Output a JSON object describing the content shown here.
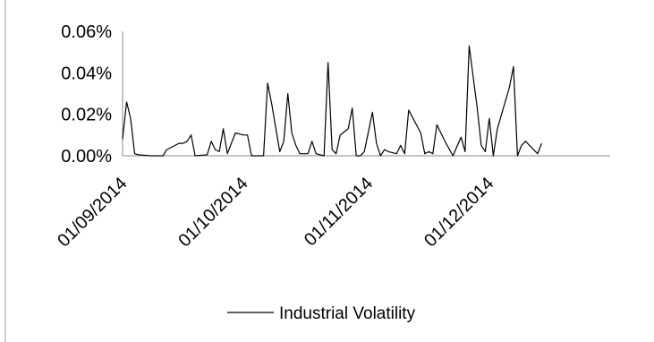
{
  "chart_data": {
    "type": "line",
    "title": "",
    "xlabel": "",
    "ylabel": "",
    "ylim": [
      0,
      0.0006
    ],
    "y_ticks": [
      "0.00%",
      "0.02%",
      "0.04%",
      "0.06%"
    ],
    "y_tick_values": [
      0,
      0.0002,
      0.0004,
      0.0006
    ],
    "x_ticks": [
      "01/09/2014",
      "01/10/2014",
      "01/11/2014",
      "01/12/2014"
    ],
    "x_tick_dates": [
      "2014-09-01",
      "2014-10-01",
      "2014-11-01",
      "2014-12-01"
    ],
    "xlim": [
      "2014-09-01",
      "2014-12-31"
    ],
    "grid": false,
    "legend_position": "bottom",
    "colors": {
      "series": "#000000",
      "axis": "#888888",
      "frame": "#a6a6a6"
    },
    "series": [
      {
        "name": "Industrial Volatility",
        "points": [
          [
            "2014-09-01",
            8e-05
          ],
          [
            "2014-09-02",
            0.00026
          ],
          [
            "2014-09-03",
            0.00018
          ],
          [
            "2014-09-04",
            1e-05
          ],
          [
            "2014-09-05",
            5e-06
          ],
          [
            "2014-09-08",
            0.0
          ],
          [
            "2014-09-11",
            0.0
          ],
          [
            "2014-09-12",
            3e-05
          ],
          [
            "2014-09-15",
            6e-05
          ],
          [
            "2014-09-16",
            6e-05
          ],
          [
            "2014-09-17",
            7e-05
          ],
          [
            "2014-09-18",
            0.0001
          ],
          [
            "2014-09-19",
            0.0
          ],
          [
            "2014-09-22",
            5e-06
          ],
          [
            "2014-09-23",
            7e-05
          ],
          [
            "2014-09-24",
            3e-05
          ],
          [
            "2014-09-25",
            2e-05
          ],
          [
            "2014-09-26",
            0.00013
          ],
          [
            "2014-09-27",
            1e-05
          ],
          [
            "2014-09-29",
            0.00011
          ],
          [
            "2014-10-01",
            0.0001
          ],
          [
            "2014-10-02",
            0.0001
          ],
          [
            "2014-10-03",
            0.0
          ],
          [
            "2014-10-06",
            0.0
          ],
          [
            "2014-10-07",
            0.00035
          ],
          [
            "2014-10-08",
            0.00025
          ],
          [
            "2014-10-10",
            2e-05
          ],
          [
            "2014-10-11",
            7e-05
          ],
          [
            "2014-10-12",
            0.0003
          ],
          [
            "2014-10-13",
            0.00011
          ],
          [
            "2014-10-14",
            5e-05
          ],
          [
            "2014-10-15",
            1e-05
          ],
          [
            "2014-10-17",
            1e-05
          ],
          [
            "2014-10-18",
            7e-05
          ],
          [
            "2014-10-19",
            1e-05
          ],
          [
            "2014-10-21",
            0.0
          ],
          [
            "2014-10-22",
            0.00045
          ],
          [
            "2014-10-23",
            3e-05
          ],
          [
            "2014-10-24",
            1e-05
          ],
          [
            "2014-10-25",
            0.0001
          ],
          [
            "2014-10-27",
            0.00013
          ],
          [
            "2014-10-28",
            0.00023
          ],
          [
            "2014-10-29",
            0.0
          ],
          [
            "2014-10-30",
            0.0
          ],
          [
            "2014-10-31",
            2e-05
          ],
          [
            "2014-11-02",
            0.00021
          ],
          [
            "2014-11-03",
            6e-05
          ],
          [
            "2014-11-04",
            0.0
          ],
          [
            "2014-11-05",
            3e-05
          ],
          [
            "2014-11-06",
            2e-05
          ],
          [
            "2014-11-08",
            1e-05
          ],
          [
            "2014-11-09",
            5e-05
          ],
          [
            "2014-11-10",
            1e-05
          ],
          [
            "2014-11-11",
            0.00022
          ],
          [
            "2014-11-14",
            0.00011
          ],
          [
            "2014-11-15",
            1e-05
          ],
          [
            "2014-11-16",
            2e-05
          ],
          [
            "2014-11-17",
            1e-05
          ],
          [
            "2014-11-18",
            0.00015
          ],
          [
            "2014-11-20",
            7e-05
          ],
          [
            "2014-11-22",
            0.0
          ],
          [
            "2014-11-24",
            9e-05
          ],
          [
            "2014-11-25",
            2e-05
          ],
          [
            "2014-11-26",
            0.00053
          ],
          [
            "2014-11-28",
            0.00023
          ],
          [
            "2014-11-29",
            5e-05
          ],
          [
            "2014-11-30",
            2e-05
          ],
          [
            "2014-12-01",
            0.00018
          ],
          [
            "2014-12-02",
            0.0
          ],
          [
            "2014-12-03",
            0.00013
          ],
          [
            "2014-12-06",
            0.00033
          ],
          [
            "2014-12-07",
            0.00043
          ],
          [
            "2014-12-08",
            0.0
          ],
          [
            "2014-12-09",
            5e-05
          ],
          [
            "2014-12-10",
            7e-05
          ],
          [
            "2014-12-12",
            3e-05
          ],
          [
            "2014-12-13",
            1e-05
          ],
          [
            "2014-12-14",
            6e-05
          ]
        ]
      }
    ]
  }
}
